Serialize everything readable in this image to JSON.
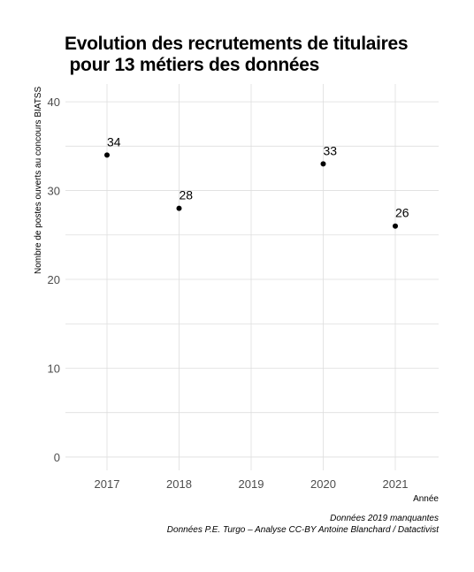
{
  "chart_data": {
    "type": "scatter",
    "title": "Evolution des recrutements de titulaires\n pour 13 métiers des données",
    "xlabel": "Année",
    "ylabel": "Nombre de postes ouverts au concours BIATSS",
    "x_categories": [
      "2017",
      "2018",
      "2019",
      "2020",
      "2021"
    ],
    "points": [
      {
        "x": "2017",
        "y": 34,
        "label": "34"
      },
      {
        "x": "2018",
        "y": 28,
        "label": "28"
      },
      {
        "x": "2020",
        "y": 33,
        "label": "33"
      },
      {
        "x": "2021",
        "y": 26,
        "label": "26"
      }
    ],
    "yticks": [
      0,
      10,
      20,
      30,
      40
    ],
    "ylim": [
      -1.5,
      42
    ],
    "grid": true,
    "point_color": "#000000",
    "grid_color": "#dedede"
  },
  "caption": {
    "line1": "Données 2019 manquantes",
    "line2": "Données P.E. Turgo – Analyse CC-BY Antoine Blanchard / Datactivist"
  }
}
